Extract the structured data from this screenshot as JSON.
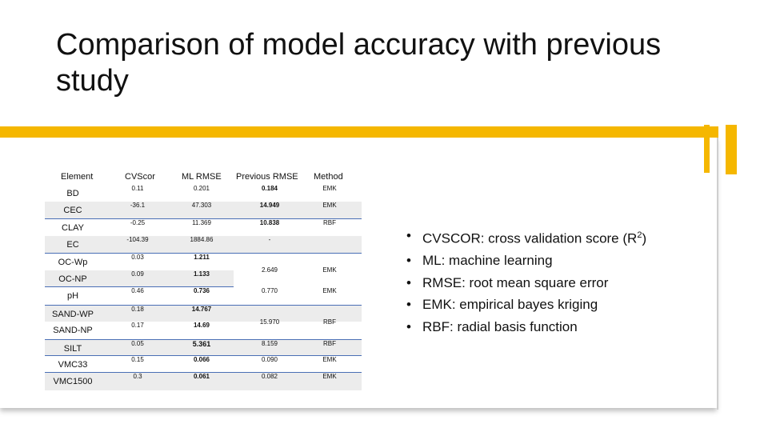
{
  "slide": {
    "title": "Comparison of model accuracy with previous study"
  },
  "table": {
    "headers": {
      "element": "Element",
      "cvscor": "CVScor",
      "ml_rmse": "ML RMSE",
      "prev_rmse": "Previous RMSE",
      "method": "Method"
    },
    "rows": [
      {
        "element": "BD",
        "cvscor": "0.11",
        "ml_rmse": "0.201",
        "prev_rmse": "0.184",
        "method": "EMK"
      },
      {
        "element": "CEC",
        "cvscor": "-36.1",
        "ml_rmse": "47.303",
        "prev_rmse": "14.949",
        "method": "EMK"
      },
      {
        "element": "CLAY",
        "cvscor": "-0.25",
        "ml_rmse": "11.369",
        "prev_rmse": "10.838",
        "method": "RBF"
      },
      {
        "element": "EC",
        "cvscor": "-104.39",
        "ml_rmse": "1884.86",
        "prev_rmse": "-",
        "method": ""
      },
      {
        "element": "OC-Wp",
        "cvscor": "0.03",
        "ml_rmse": "1.211",
        "prev_rmse": "",
        "method": ""
      },
      {
        "element": "OC-NP",
        "cvscor": "0.09",
        "ml_rmse": "1.133",
        "prev_rmse": "",
        "method": ""
      },
      {
        "element": "pH",
        "cvscor": "0.46",
        "ml_rmse": "0.736",
        "prev_rmse": "0.770",
        "method": "EMK"
      },
      {
        "element": "SAND-WP",
        "cvscor": "0.18",
        "ml_rmse": "14.767",
        "prev_rmse": "",
        "method": ""
      },
      {
        "element": "SAND-NP",
        "cvscor": "0.17",
        "ml_rmse": "14.69",
        "prev_rmse": "",
        "method": ""
      },
      {
        "element": "SILT",
        "cvscor": "0.05",
        "ml_rmse": "5.361",
        "prev_rmse": "8.159",
        "method": "RBF"
      },
      {
        "element": "VMC33",
        "cvscor": "0.15",
        "ml_rmse": "0.066",
        "prev_rmse": "0.090",
        "method": "EMK"
      },
      {
        "element": "VMC1500",
        "cvscor": "0.3",
        "ml_rmse": "0.061",
        "prev_rmse": "0.082",
        "method": "EMK"
      }
    ],
    "merged": {
      "oc": {
        "prev_rmse": "2.649",
        "method": "EMK"
      },
      "sand": {
        "prev_rmse": "15.970",
        "method": "RBF"
      }
    }
  },
  "bullets": {
    "cvscor_prefix": "CVSCOR: cross validation score (R",
    "cvscor_sup": "2",
    "cvscor_suffix": ")",
    "ml": "ML: machine learning",
    "rmse": "RMSE: root mean square error",
    "emk": "EMK: empirical bayes kriging",
    "rbf": "RBF: radial basis function"
  },
  "colors": {
    "accent_gold": "#f5b700",
    "row_shade": "#ececec",
    "row_separator": "#4a6fb5"
  }
}
